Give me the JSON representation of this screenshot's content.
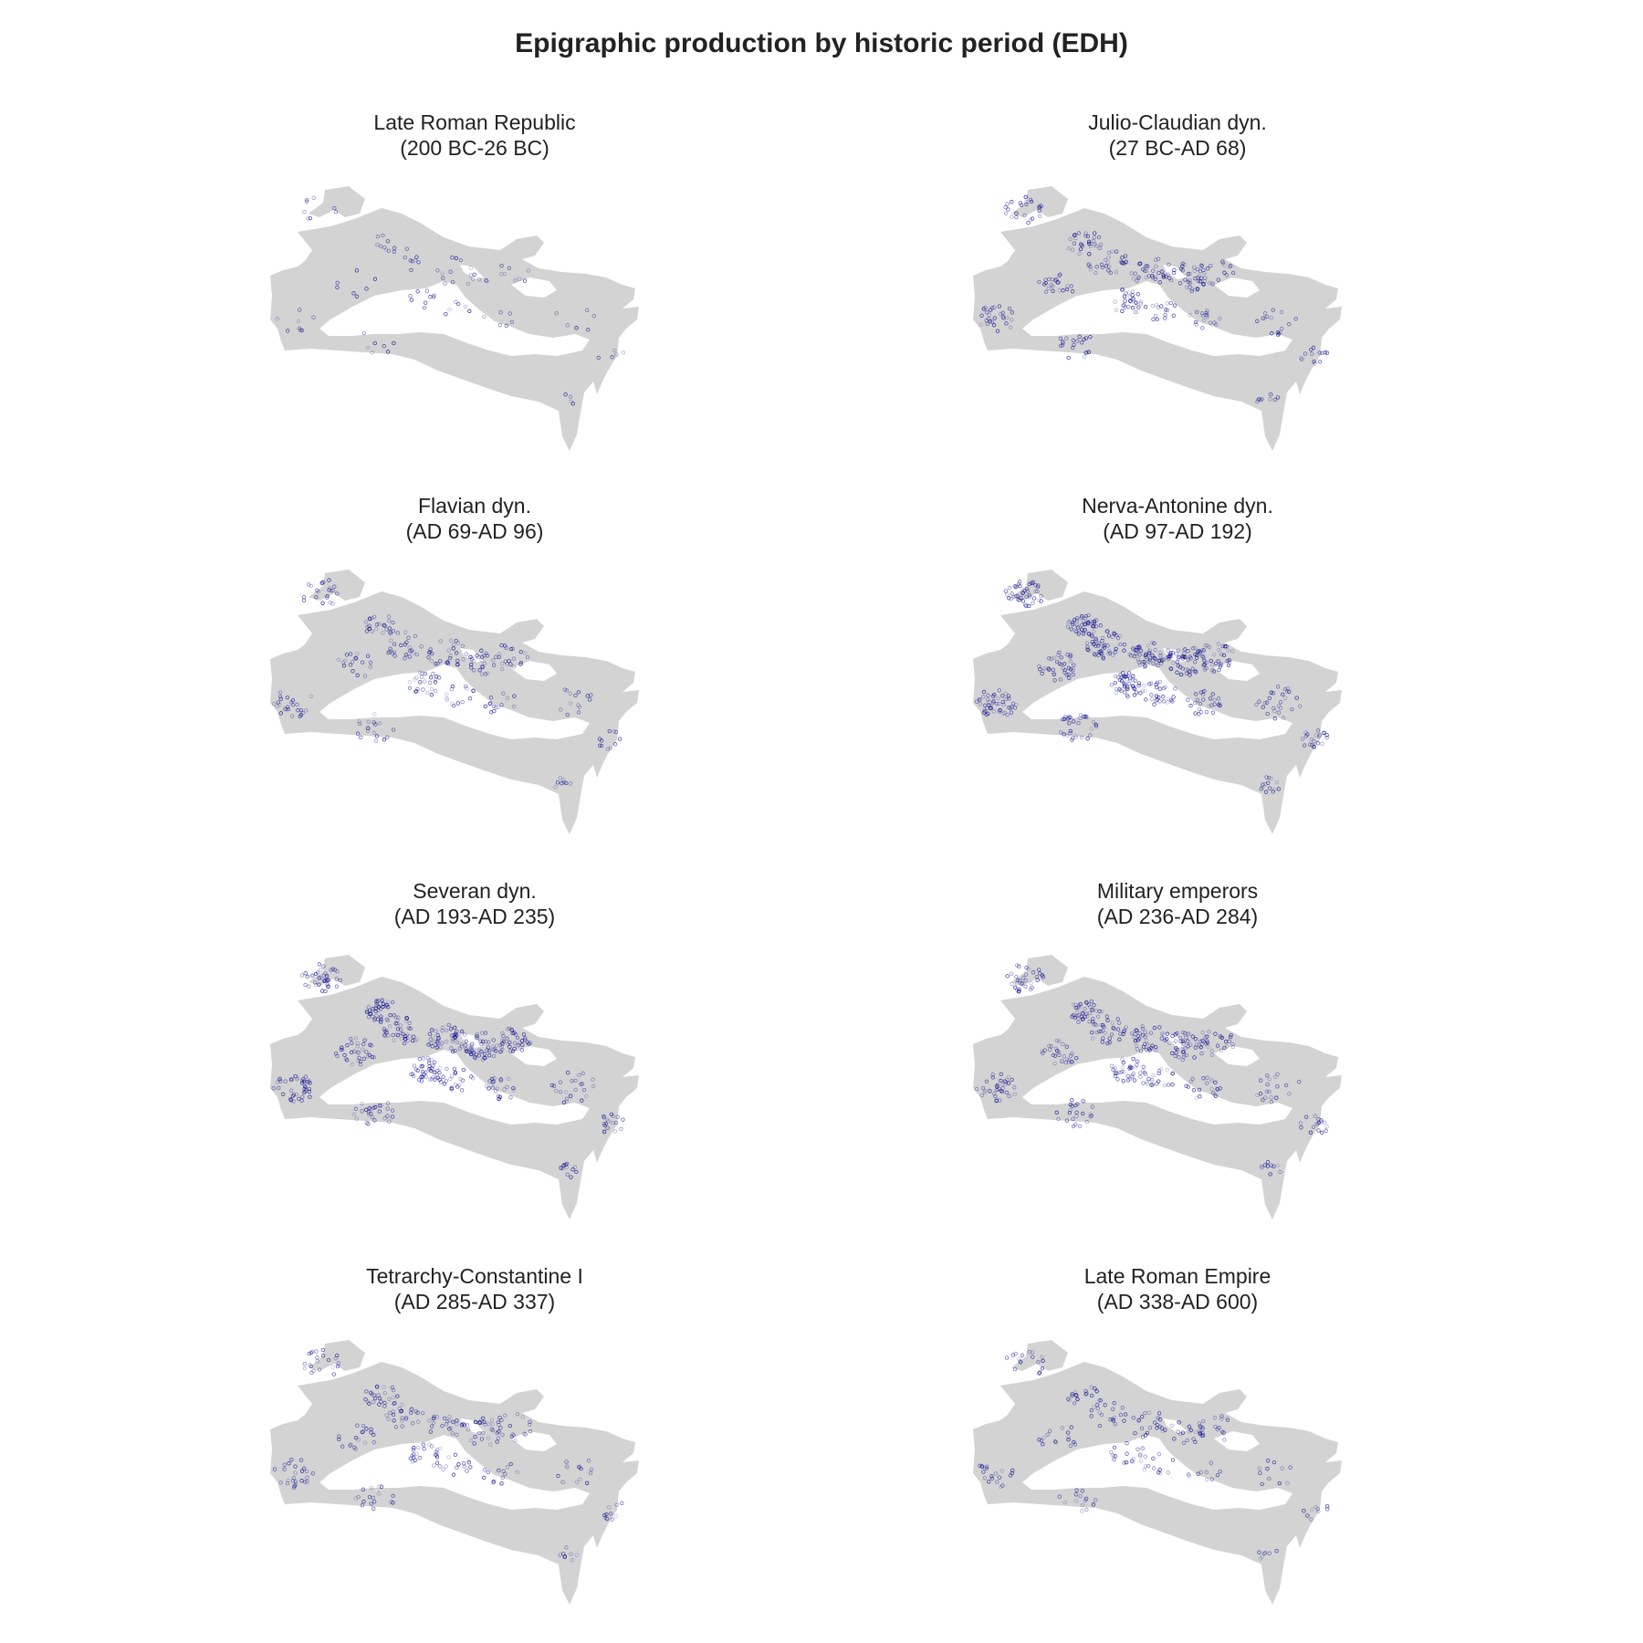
{
  "title": "Epigraphic production by historic period (EDH)",
  "colors": {
    "land": "#d3d3d3",
    "sea": "#ffffff",
    "points": "#00008b",
    "text": "#222222"
  },
  "panels": [
    {
      "name": "Late Roman Republic",
      "range": "(200 BC-26 BC)",
      "density": 0.12
    },
    {
      "name": "Julio-Claudian dyn.",
      "range": "(27 BC-AD 68)",
      "density": 0.55
    },
    {
      "name": "Flavian dyn.",
      "range": "(AD 69-AD 96)",
      "density": 0.45
    },
    {
      "name": "Nerva-Antonine dyn.",
      "range": "(AD 97-AD 192)",
      "density": 1.0
    },
    {
      "name": "Severan dyn.",
      "range": "(AD 193-AD 235)",
      "density": 0.85
    },
    {
      "name": "Military emperors",
      "range": "(AD 236-AD 284)",
      "density": 0.7
    },
    {
      "name": "Tetrarchy-Constantine I",
      "range": "(AD 285-AD 337)",
      "density": 0.45
    },
    {
      "name": "Late Roman Empire",
      "range": "(AD 338-AD 600)",
      "density": 0.35
    }
  ]
}
